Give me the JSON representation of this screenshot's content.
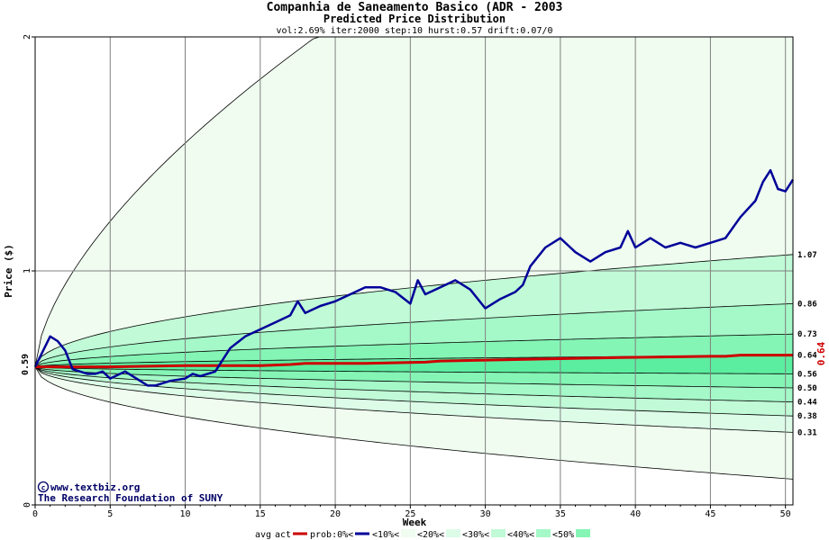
{
  "chart_data": {
    "type": "line",
    "title": "Companhia de Saneamento Basico (ADR - 2003",
    "subtitle": "Predicted Price Distribution",
    "params": "vol:2.69% iter:2000 step:10 hurst:0.57 drift:0.07/0",
    "xlabel": "Week",
    "ylabel": "Price ($)",
    "xlim": [
      0,
      50.5
    ],
    "ylim": [
      0,
      2
    ],
    "x_ticks": [
      0,
      5,
      10,
      15,
      20,
      25,
      30,
      35,
      40,
      45,
      50
    ],
    "y_ticks": [
      0,
      1,
      2
    ],
    "start_price_label": "0.59",
    "start_price": 0.59,
    "final_avg_label": "0.64",
    "grid": true,
    "band_colors": [
      "#effcef",
      "#dcfce8",
      "#c0fad6",
      "#a5f8c8",
      "#85f5b5",
      "#5ceea0"
    ],
    "series": [
      {
        "name": "act",
        "color": "#000099",
        "x": [
          0,
          1,
          1.5,
          2,
          2.5,
          3,
          3.5,
          4,
          4.5,
          5,
          6,
          7,
          7.5,
          8,
          9,
          10,
          10.5,
          11,
          12,
          12.5,
          13,
          14,
          15,
          16,
          17,
          17.5,
          18,
          19,
          20,
          21,
          22,
          23,
          24,
          25,
          25.5,
          26,
          27,
          28,
          28.5,
          29,
          30,
          31,
          32,
          32.5,
          33,
          34,
          35,
          36,
          37,
          38,
          39,
          39.5,
          40,
          41,
          42,
          43,
          44,
          45,
          46,
          47,
          48,
          48.5,
          49,
          49.5,
          50,
          50.5
        ],
        "y": [
          0.59,
          0.72,
          0.7,
          0.66,
          0.58,
          0.57,
          0.56,
          0.56,
          0.57,
          0.54,
          0.57,
          0.53,
          0.51,
          0.51,
          0.53,
          0.54,
          0.56,
          0.55,
          0.57,
          0.62,
          0.67,
          0.72,
          0.75,
          0.78,
          0.81,
          0.87,
          0.82,
          0.85,
          0.87,
          0.9,
          0.93,
          0.93,
          0.91,
          0.86,
          0.96,
          0.9,
          0.93,
          0.96,
          0.94,
          0.92,
          0.84,
          0.88,
          0.91,
          0.94,
          1.02,
          1.1,
          1.14,
          1.08,
          1.04,
          1.08,
          1.1,
          1.17,
          1.1,
          1.14,
          1.1,
          1.12,
          1.1,
          1.12,
          1.14,
          1.23,
          1.3,
          1.38,
          1.43,
          1.35,
          1.34,
          1.39
        ]
      },
      {
        "name": "avg",
        "color": "#cc0000",
        "x": [
          0,
          5,
          10,
          15,
          17,
          18,
          22,
          26,
          27,
          35,
          39,
          45,
          46,
          47,
          50.5
        ],
        "y": [
          0.59,
          0.59,
          0.595,
          0.595,
          0.6,
          0.605,
          0.605,
          0.61,
          0.615,
          0.625,
          0.63,
          0.635,
          0.635,
          0.64,
          0.64
        ]
      }
    ],
    "quantile_curves": [
      {
        "label": "",
        "end": 0.11
      },
      {
        "label": "0.31",
        "end": 0.31
      },
      {
        "label": "0.38",
        "end": 0.38
      },
      {
        "label": "0.44",
        "end": 0.44
      },
      {
        "label": "0.50",
        "end": 0.5
      },
      {
        "label": "0.56",
        "end": 0.56
      },
      {
        "label": "0.64",
        "end": 0.64
      },
      {
        "label": "0.73",
        "end": 0.73
      },
      {
        "label": "0.86",
        "end": 0.86
      },
      {
        "label": "1.07",
        "end": 1.07
      },
      {
        "label": "",
        "end": 2.0
      }
    ],
    "legend": [
      {
        "label": "avg",
        "swatch": "",
        "kind": "text"
      },
      {
        "label": "act",
        "swatch": "#cc0000",
        "kind": "line"
      },
      {
        "label": "prob:0%<",
        "swatch": "#000099",
        "kind": "line"
      },
      {
        "label": "<10%<",
        "swatch": "#effcef",
        "kind": "box"
      },
      {
        "label": "<20%<",
        "swatch": "#dcfce8",
        "kind": "box"
      },
      {
        "label": "<30%<",
        "swatch": "#c0fad6",
        "kind": "box"
      },
      {
        "label": "<40%<",
        "swatch": "#a5f8c8",
        "kind": "box"
      },
      {
        "label": "<50%",
        "swatch": "#85f5b5",
        "kind": "box"
      }
    ]
  },
  "watermark": {
    "copyright_symbol": "©",
    "line1": "www.textbiz.org",
    "line2": "The Research Foundation of SUNY"
  }
}
